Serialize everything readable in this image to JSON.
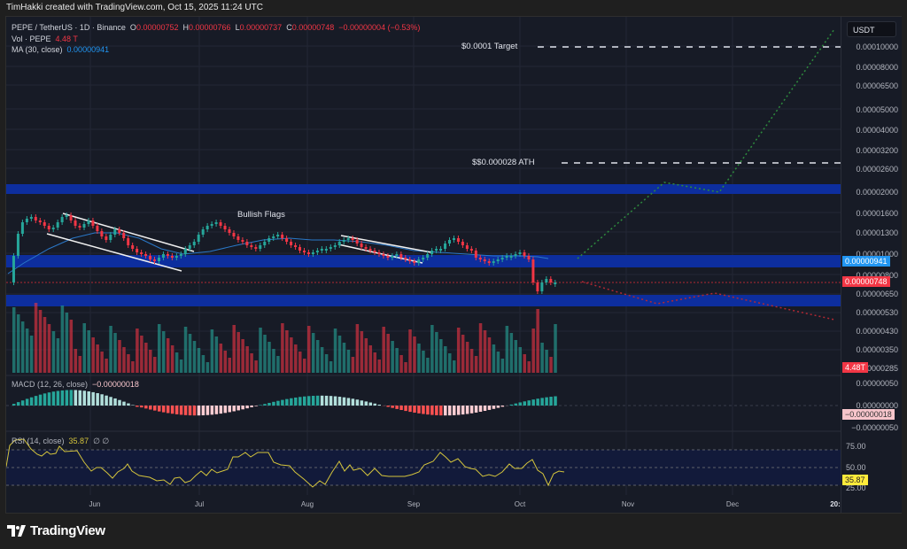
{
  "credit": "TimHakki created with TradingView.com, Oct 15, 2025 11:24 UTC",
  "legend": {
    "symbol": "PEPE / TetherUS · 1D · Binance",
    "open_label": "O",
    "open": "0.00000752",
    "high_label": "H",
    "high": "0.00000766",
    "low_label": "L",
    "low": "0.00000737",
    "close_label": "C",
    "close": "0.00000748",
    "change": "−0.00000004 (−0.53%)",
    "vol_label": "Vol · PEPE",
    "vol_value": "4.48 T",
    "ma_label": "MA (30, close)",
    "ma_value": "0.00000941"
  },
  "price_axis": {
    "currency": "USDT",
    "ticks": [
      "0.00010000",
      "0.00008000",
      "0.00006500",
      "0.00005000",
      "0.00004000",
      "0.00003200",
      "0.00002600",
      "0.00002000",
      "0.00001600",
      "0.00001300",
      "0.00001000",
      "0.00000800",
      "0.00000650",
      "0.00000530",
      "0.00000430",
      "0.00000350",
      "0.00000285"
    ],
    "ma_badge": "0.00000941",
    "price_badge": "0.00000748",
    "vol_badge": "4.48T"
  },
  "macd": {
    "label": "MACD (12, 26, close)",
    "value": "−0.00000018",
    "ticks": [
      "0.00000050",
      "0.00000000",
      "−0.00000050"
    ],
    "badge": "−0.00000018"
  },
  "rsi": {
    "label": "RSI (14, close)",
    "value": "35.87",
    "extra": "∅ ∅",
    "ticks": [
      "75.00",
      "50.00",
      "25.00"
    ],
    "badge": "35.87"
  },
  "annotations": {
    "target": "$0.0001 Target",
    "ath": "$$0.000028 ATH",
    "flags": "Bullish Flags"
  },
  "time_axis": [
    "Jun",
    "Jul",
    "Aug",
    "Sep",
    "Oct",
    "Nov",
    "Dec",
    "20:"
  ],
  "brand": "TradingView",
  "colors": {
    "up": "#26a69a",
    "down": "#f23645",
    "zone": "#0d2e9e",
    "ma": "#2962ff",
    "rsi": "#d4c43c",
    "bg": "#171b26"
  },
  "chart_data": {
    "type": "candlestick",
    "title": "PEPE / TetherUS · 1D · Binance",
    "x_range": [
      "2025-05",
      "2026-01"
    ],
    "xlabel": "",
    "ylabel": "USDT (log)",
    "y_ticks": [
      0.0001,
      8e-05,
      6.5e-05,
      5e-05,
      4e-05,
      3.2e-05,
      2.6e-05,
      2e-05,
      1.6e-05,
      1.3e-05,
      1e-05,
      8e-06,
      6.5e-06,
      5.3e-06,
      4.3e-06,
      3.5e-06,
      2.85e-06
    ],
    "ohlc_last": {
      "open": 7.52e-06,
      "high": 7.66e-06,
      "low": 7.37e-06,
      "close": 7.48e-06,
      "change": -4e-08,
      "change_pct": -0.53
    },
    "ma30": 9.41e-06,
    "volume_last": "4.48T",
    "horizontal_levels": [
      {
        "label": "$0.0001 Target",
        "value": 0.0001,
        "style": "dashed"
      },
      {
        "label": "$$0.000028 ATH",
        "value": 2.8e-05,
        "style": "dashed"
      }
    ],
    "zones": [
      {
        "name": "upper resistance",
        "approx_value": 2.05e-05
      },
      {
        "name": "middle support",
        "approx_value": 9.7e-06
      },
      {
        "name": "lower support",
        "approx_value": 6.5e-06
      }
    ],
    "projections": [
      {
        "name": "bullish path",
        "points": [
          [
            "mid-Oct",
            9.7e-06
          ],
          [
            "early Nov",
            2.1e-05
          ],
          [
            "late Nov",
            2e-05
          ],
          [
            "early 2026",
            0.00011
          ]
        ]
      },
      {
        "name": "bearish path",
        "points": [
          [
            "mid-Oct",
            7.7e-06
          ],
          [
            "early Nov",
            6.1e-06
          ],
          [
            "late Nov",
            6.5e-06
          ],
          [
            "early 2026",
            5.5e-06
          ]
        ]
      }
    ],
    "patterns": [
      "Bullish Flags (late May–June)",
      "Bullish Flag (mid Aug)"
    ],
    "macd": {
      "params": "12, 26, close",
      "last": -1.8e-07,
      "ylim": [
        -5e-07,
        5e-07
      ]
    },
    "rsi": {
      "params": "14, close",
      "last": 35.87,
      "bands": [
        25,
        50,
        75
      ]
    },
    "legend_position": "top-left",
    "grid": true
  }
}
